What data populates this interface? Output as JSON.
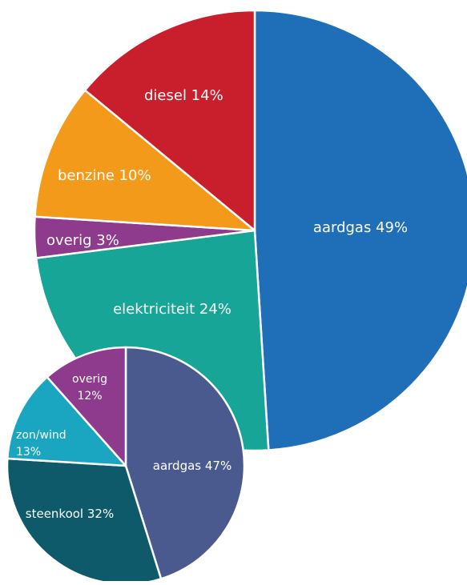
{
  "chart_data": [
    {
      "type": "pie",
      "categories": [
        "aardgas",
        "elektriciteit",
        "overig",
        "benzine",
        "diesel"
      ],
      "values": [
        49,
        24,
        3,
        10,
        14
      ],
      "labels": [
        "aardgas 49%",
        "elektriciteit 24%",
        "overig 3%",
        "benzine 10%",
        "diesel 14%"
      ],
      "colors": [
        "#1f6fb8",
        "#16a596",
        "#8e3a8d",
        "#f39a1a",
        "#c91f2d"
      ]
    },
    {
      "type": "pie",
      "categories": [
        "aardgas",
        "steenkool",
        "zon/wind",
        "overig"
      ],
      "values": [
        47,
        32,
        13,
        12
      ],
      "labels": [
        "aardgas 47%",
        "steenkool 32%",
        "zon/wind 13%",
        "overig 12%"
      ],
      "colors": [
        "#4a5a8e",
        "#0e5a6b",
        "#1aa6c1",
        "#8e3a8d"
      ]
    }
  ]
}
